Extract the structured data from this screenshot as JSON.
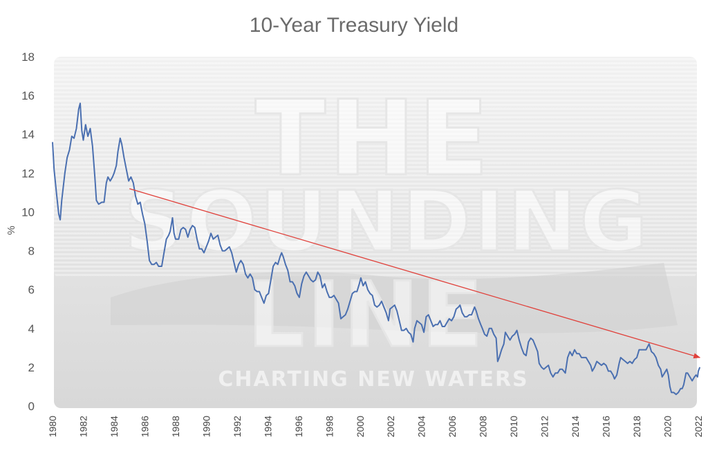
{
  "chart_data": {
    "type": "line",
    "title": "10-Year Treasury Yield",
    "ylabel": "%",
    "xlabel": "",
    "xlim": [
      1980,
      2022
    ],
    "ylim": [
      0,
      18
    ],
    "yticks": [
      "0",
      "2",
      "4",
      "6",
      "8",
      "10",
      "12",
      "14",
      "16",
      "18"
    ],
    "xticks": [
      "1980",
      "1982",
      "1984",
      "1986",
      "1988",
      "1990",
      "1992",
      "1994",
      "1996",
      "1998",
      "2000",
      "2002",
      "2004",
      "2006",
      "2008",
      "2010",
      "2012",
      "2014",
      "2016",
      "2018",
      "2020",
      "2022"
    ],
    "grid": false,
    "legend": "none",
    "series": [
      {
        "color": "#4a6fb0",
        "points": [
          [
            1980.0,
            13.6
          ],
          [
            1980.1,
            12.2
          ],
          [
            1980.25,
            11.0
          ],
          [
            1980.4,
            9.9
          ],
          [
            1980.5,
            9.6
          ],
          [
            1980.6,
            10.6
          ],
          [
            1980.8,
            12.0
          ],
          [
            1980.95,
            12.8
          ],
          [
            1981.1,
            13.2
          ],
          [
            1981.25,
            13.9
          ],
          [
            1981.4,
            13.8
          ],
          [
            1981.55,
            14.3
          ],
          [
            1981.7,
            15.3
          ],
          [
            1981.8,
            15.6
          ],
          [
            1981.9,
            14.2
          ],
          [
            1982.0,
            13.7
          ],
          [
            1982.15,
            14.5
          ],
          [
            1982.3,
            13.9
          ],
          [
            1982.45,
            14.3
          ],
          [
            1982.6,
            13.4
          ],
          [
            1982.75,
            11.8
          ],
          [
            1982.85,
            10.6
          ],
          [
            1983.0,
            10.4
          ],
          [
            1983.2,
            10.5
          ],
          [
            1983.35,
            10.5
          ],
          [
            1983.5,
            11.5
          ],
          [
            1983.6,
            11.8
          ],
          [
            1983.75,
            11.6
          ],
          [
            1983.9,
            11.8
          ],
          [
            1984.0,
            12.0
          ],
          [
            1984.15,
            12.4
          ],
          [
            1984.25,
            13.1
          ],
          [
            1984.4,
            13.8
          ],
          [
            1984.5,
            13.5
          ],
          [
            1984.65,
            12.8
          ],
          [
            1984.8,
            12.2
          ],
          [
            1984.95,
            11.6
          ],
          [
            1985.1,
            11.8
          ],
          [
            1985.25,
            11.5
          ],
          [
            1985.4,
            10.8
          ],
          [
            1985.55,
            10.4
          ],
          [
            1985.7,
            10.5
          ],
          [
            1985.85,
            9.9
          ],
          [
            1986.0,
            9.4
          ],
          [
            1986.15,
            8.5
          ],
          [
            1986.3,
            7.5
          ],
          [
            1986.45,
            7.3
          ],
          [
            1986.6,
            7.3
          ],
          [
            1986.75,
            7.4
          ],
          [
            1986.9,
            7.2
          ],
          [
            1987.1,
            7.2
          ],
          [
            1987.25,
            7.9
          ],
          [
            1987.4,
            8.6
          ],
          [
            1987.55,
            8.8
          ],
          [
            1987.65,
            9.0
          ],
          [
            1987.8,
            9.7
          ],
          [
            1987.9,
            8.9
          ],
          [
            1988.0,
            8.6
          ],
          [
            1988.2,
            8.6
          ],
          [
            1988.35,
            9.1
          ],
          [
            1988.5,
            9.2
          ],
          [
            1988.65,
            9.1
          ],
          [
            1988.8,
            8.7
          ],
          [
            1988.95,
            9.1
          ],
          [
            1989.1,
            9.3
          ],
          [
            1989.25,
            9.2
          ],
          [
            1989.4,
            8.6
          ],
          [
            1989.55,
            8.1
          ],
          [
            1989.7,
            8.1
          ],
          [
            1989.85,
            7.9
          ],
          [
            1990.0,
            8.2
          ],
          [
            1990.15,
            8.5
          ],
          [
            1990.3,
            8.9
          ],
          [
            1990.45,
            8.6
          ],
          [
            1990.6,
            8.7
          ],
          [
            1990.75,
            8.8
          ],
          [
            1990.9,
            8.3
          ],
          [
            1991.05,
            8.0
          ],
          [
            1991.2,
            8.0
          ],
          [
            1991.35,
            8.1
          ],
          [
            1991.5,
            8.2
          ],
          [
            1991.65,
            7.9
          ],
          [
            1991.8,
            7.4
          ],
          [
            1991.95,
            6.9
          ],
          [
            1992.1,
            7.3
          ],
          [
            1992.25,
            7.5
          ],
          [
            1992.4,
            7.3
          ],
          [
            1992.55,
            6.8
          ],
          [
            1992.7,
            6.6
          ],
          [
            1992.85,
            6.8
          ],
          [
            1993.0,
            6.6
          ],
          [
            1993.15,
            6.0
          ],
          [
            1993.3,
            5.9
          ],
          [
            1993.45,
            5.9
          ],
          [
            1993.6,
            5.6
          ],
          [
            1993.75,
            5.3
          ],
          [
            1993.9,
            5.7
          ],
          [
            1994.05,
            5.8
          ],
          [
            1994.2,
            6.5
          ],
          [
            1994.35,
            7.2
          ],
          [
            1994.5,
            7.4
          ],
          [
            1994.65,
            7.3
          ],
          [
            1994.8,
            7.7
          ],
          [
            1994.9,
            7.9
          ],
          [
            1995.0,
            7.7
          ],
          [
            1995.15,
            7.3
          ],
          [
            1995.3,
            7.0
          ],
          [
            1995.45,
            6.4
          ],
          [
            1995.6,
            6.4
          ],
          [
            1995.75,
            6.2
          ],
          [
            1995.9,
            5.8
          ],
          [
            1996.05,
            5.6
          ],
          [
            1996.2,
            6.3
          ],
          [
            1996.35,
            6.7
          ],
          [
            1996.5,
            6.9
          ],
          [
            1996.65,
            6.7
          ],
          [
            1996.8,
            6.5
          ],
          [
            1996.95,
            6.4
          ],
          [
            1997.1,
            6.5
          ],
          [
            1997.25,
            6.9
          ],
          [
            1997.4,
            6.7
          ],
          [
            1997.55,
            6.1
          ],
          [
            1997.7,
            6.3
          ],
          [
            1997.85,
            5.9
          ],
          [
            1998.0,
            5.6
          ],
          [
            1998.15,
            5.6
          ],
          [
            1998.3,
            5.7
          ],
          [
            1998.45,
            5.5
          ],
          [
            1998.6,
            5.3
          ],
          [
            1998.75,
            4.5
          ],
          [
            1998.9,
            4.6
          ],
          [
            1999.05,
            4.7
          ],
          [
            1999.2,
            5.0
          ],
          [
            1999.35,
            5.4
          ],
          [
            1999.5,
            5.8
          ],
          [
            1999.65,
            5.9
          ],
          [
            1999.8,
            5.9
          ],
          [
            1999.95,
            6.3
          ],
          [
            2000.05,
            6.6
          ],
          [
            2000.2,
            6.2
          ],
          [
            2000.35,
            6.4
          ],
          [
            2000.5,
            6.0
          ],
          [
            2000.65,
            5.8
          ],
          [
            2000.8,
            5.7
          ],
          [
            2000.95,
            5.2
          ],
          [
            2001.1,
            5.1
          ],
          [
            2001.25,
            5.2
          ],
          [
            2001.4,
            5.4
          ],
          [
            2001.55,
            5.1
          ],
          [
            2001.7,
            4.8
          ],
          [
            2001.85,
            4.4
          ],
          [
            2001.95,
            5.0
          ],
          [
            2002.1,
            5.1
          ],
          [
            2002.25,
            5.2
          ],
          [
            2002.4,
            4.9
          ],
          [
            2002.55,
            4.4
          ],
          [
            2002.7,
            3.9
          ],
          [
            2002.85,
            3.9
          ],
          [
            2003.0,
            4.0
          ],
          [
            2003.15,
            3.8
          ],
          [
            2003.3,
            3.7
          ],
          [
            2003.45,
            3.3
          ],
          [
            2003.55,
            4.0
          ],
          [
            2003.7,
            4.4
          ],
          [
            2003.85,
            4.3
          ],
          [
            2004.0,
            4.2
          ],
          [
            2004.15,
            3.8
          ],
          [
            2004.3,
            4.6
          ],
          [
            2004.45,
            4.7
          ],
          [
            2004.6,
            4.4
          ],
          [
            2004.75,
            4.1
          ],
          [
            2004.9,
            4.2
          ],
          [
            2005.05,
            4.2
          ],
          [
            2005.2,
            4.4
          ],
          [
            2005.35,
            4.1
          ],
          [
            2005.5,
            4.1
          ],
          [
            2005.65,
            4.3
          ],
          [
            2005.8,
            4.5
          ],
          [
            2005.95,
            4.4
          ],
          [
            2006.1,
            4.6
          ],
          [
            2006.25,
            5.0
          ],
          [
            2006.4,
            5.1
          ],
          [
            2006.5,
            5.2
          ],
          [
            2006.65,
            4.8
          ],
          [
            2006.8,
            4.6
          ],
          [
            2006.95,
            4.6
          ],
          [
            2007.1,
            4.7
          ],
          [
            2007.25,
            4.7
          ],
          [
            2007.45,
            5.1
          ],
          [
            2007.55,
            4.9
          ],
          [
            2007.7,
            4.5
          ],
          [
            2007.85,
            4.2
          ],
          [
            2007.95,
            4.0
          ],
          [
            2008.1,
            3.7
          ],
          [
            2008.25,
            3.6
          ],
          [
            2008.4,
            4.0
          ],
          [
            2008.55,
            4.0
          ],
          [
            2008.7,
            3.7
          ],
          [
            2008.85,
            3.5
          ],
          [
            2008.95,
            2.3
          ],
          [
            2009.05,
            2.5
          ],
          [
            2009.2,
            2.9
          ],
          [
            2009.35,
            3.2
          ],
          [
            2009.45,
            3.8
          ],
          [
            2009.6,
            3.6
          ],
          [
            2009.75,
            3.4
          ],
          [
            2009.9,
            3.6
          ],
          [
            2010.05,
            3.7
          ],
          [
            2010.2,
            3.9
          ],
          [
            2010.35,
            3.4
          ],
          [
            2010.5,
            3.0
          ],
          [
            2010.65,
            2.7
          ],
          [
            2010.8,
            2.6
          ],
          [
            2010.95,
            3.3
          ],
          [
            2011.1,
            3.5
          ],
          [
            2011.25,
            3.4
          ],
          [
            2011.4,
            3.1
          ],
          [
            2011.55,
            2.8
          ],
          [
            2011.65,
            2.2
          ],
          [
            2011.8,
            2.0
          ],
          [
            2011.95,
            1.9
          ],
          [
            2012.1,
            2.0
          ],
          [
            2012.25,
            2.1
          ],
          [
            2012.4,
            1.7
          ],
          [
            2012.55,
            1.5
          ],
          [
            2012.7,
            1.7
          ],
          [
            2012.85,
            1.7
          ],
          [
            2013.0,
            1.9
          ],
          [
            2013.15,
            1.9
          ],
          [
            2013.35,
            1.7
          ],
          [
            2013.5,
            2.5
          ],
          [
            2013.65,
            2.8
          ],
          [
            2013.8,
            2.6
          ],
          [
            2013.95,
            2.9
          ],
          [
            2014.1,
            2.7
          ],
          [
            2014.25,
            2.7
          ],
          [
            2014.4,
            2.5
          ],
          [
            2014.55,
            2.5
          ],
          [
            2014.7,
            2.5
          ],
          [
            2014.85,
            2.3
          ],
          [
            2015.0,
            2.1
          ],
          [
            2015.1,
            1.8
          ],
          [
            2015.25,
            2.0
          ],
          [
            2015.4,
            2.3
          ],
          [
            2015.55,
            2.2
          ],
          [
            2015.7,
            2.1
          ],
          [
            2015.85,
            2.2
          ],
          [
            2016.0,
            2.1
          ],
          [
            2016.15,
            1.8
          ],
          [
            2016.3,
            1.8
          ],
          [
            2016.45,
            1.6
          ],
          [
            2016.55,
            1.4
          ],
          [
            2016.7,
            1.6
          ],
          [
            2016.85,
            2.2
          ],
          [
            2016.95,
            2.5
          ],
          [
            2017.1,
            2.4
          ],
          [
            2017.25,
            2.3
          ],
          [
            2017.4,
            2.2
          ],
          [
            2017.55,
            2.3
          ],
          [
            2017.7,
            2.2
          ],
          [
            2017.85,
            2.4
          ],
          [
            2018.0,
            2.5
          ],
          [
            2018.15,
            2.9
          ],
          [
            2018.3,
            2.9
          ],
          [
            2018.45,
            2.9
          ],
          [
            2018.6,
            2.9
          ],
          [
            2018.8,
            3.2
          ],
          [
            2018.95,
            2.8
          ],
          [
            2019.1,
            2.7
          ],
          [
            2019.25,
            2.5
          ],
          [
            2019.4,
            2.1
          ],
          [
            2019.55,
            1.9
          ],
          [
            2019.65,
            1.5
          ],
          [
            2019.8,
            1.7
          ],
          [
            2019.95,
            1.9
          ],
          [
            2020.05,
            1.6
          ],
          [
            2020.15,
            1.0
          ],
          [
            2020.25,
            0.7
          ],
          [
            2020.4,
            0.7
          ],
          [
            2020.55,
            0.6
          ],
          [
            2020.7,
            0.7
          ],
          [
            2020.85,
            0.9
          ],
          [
            2020.95,
            0.9
          ],
          [
            2021.05,
            1.1
          ],
          [
            2021.2,
            1.7
          ],
          [
            2021.3,
            1.7
          ],
          [
            2021.45,
            1.5
          ],
          [
            2021.6,
            1.3
          ],
          [
            2021.75,
            1.5
          ],
          [
            2021.85,
            1.6
          ],
          [
            2021.95,
            1.5
          ],
          [
            2022.0,
            1.8
          ],
          [
            2022.1,
            2.0
          ]
        ]
      }
    ],
    "annotations": [
      {
        "type": "arrow",
        "color": "#e0403a",
        "from": [
          1985.0,
          11.2
        ],
        "to": [
          2022.1,
          2.5
        ]
      }
    ]
  },
  "watermark": {
    "line1": "THE",
    "line2": "SOUNDING",
    "line3": "LINE",
    "tagline": "CHARTING NEW WATERS"
  }
}
